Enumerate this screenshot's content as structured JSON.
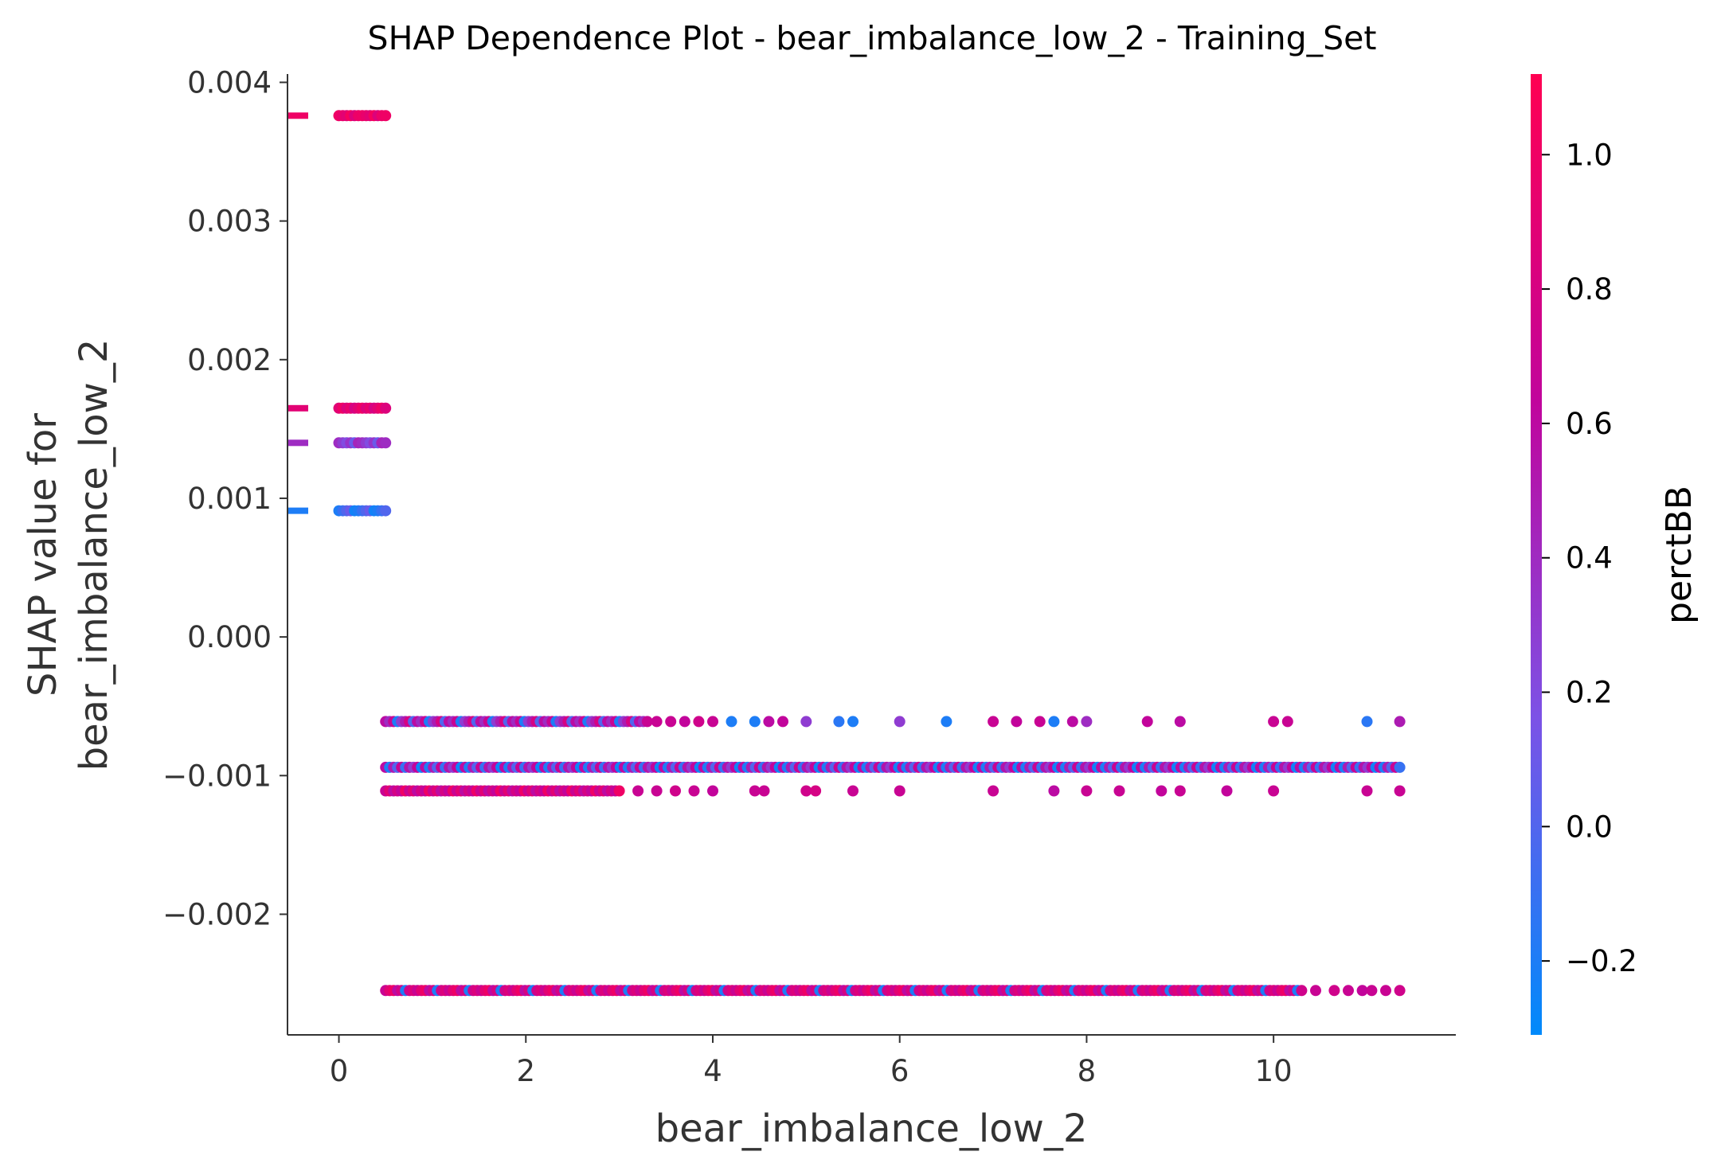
{
  "chart_data": {
    "type": "scatter",
    "title": "SHAP Dependence Plot - bear_imbalance_low_2 - Training_Set",
    "xlabel": "bear_imbalance_low_2",
    "ylabel_line1": "SHAP value for",
    "ylabel_line2": "bear_imbalance_low_2",
    "xlim": [
      -0.55,
      11.95
    ],
    "ylim": [
      -0.00287,
      0.00406
    ],
    "x_ticks": [
      {
        "value": 0,
        "label": "0"
      },
      {
        "value": 2,
        "label": "2"
      },
      {
        "value": 4,
        "label": "4"
      },
      {
        "value": 6,
        "label": "6"
      },
      {
        "value": 8,
        "label": "8"
      },
      {
        "value": 10,
        "label": "10"
      }
    ],
    "y_ticks": [
      {
        "value": 0.004,
        "label": "0.004"
      },
      {
        "value": 0.003,
        "label": "0.003"
      },
      {
        "value": 0.002,
        "label": "0.002"
      },
      {
        "value": 0.001,
        "label": "0.001"
      },
      {
        "value": 0.0,
        "label": "0.000"
      },
      {
        "value": -0.001,
        "label": "−0.001"
      },
      {
        "value": -0.002,
        "label": "−0.002"
      }
    ],
    "colorbar": {
      "label": "perctBB",
      "range": [
        -0.31,
        1.12
      ],
      "ticks": [
        {
          "value": 1.0,
          "label": "1.0"
        },
        {
          "value": 0.8,
          "label": "0.8"
        },
        {
          "value": 0.6,
          "label": "0.6"
        },
        {
          "value": 0.4,
          "label": "0.4"
        },
        {
          "value": 0.2,
          "label": "0.2"
        },
        {
          "value": 0.0,
          "label": "0.0"
        },
        {
          "value": -0.2,
          "label": "−0.2"
        }
      ],
      "colors": [
        "#008afb",
        "#7c52e6",
        "#c1049c",
        "#ff0052"
      ]
    },
    "bands": [
      {
        "y": 0.00376,
        "x": [
          0,
          0.5
        ],
        "dense": true,
        "color_values": [
          1.0,
          0.95,
          0.9,
          1.05,
          0.85,
          0.98
        ]
      },
      {
        "y": 0.00165,
        "x": [
          0,
          0.5
        ],
        "dense": true,
        "color_values": [
          0.9,
          1.0,
          0.85,
          0.95,
          0.8
        ]
      },
      {
        "y": 0.0014,
        "x": [
          0,
          0.5
        ],
        "dense": true,
        "color_values": [
          0.4,
          0.3,
          0.2,
          0.35,
          0.1,
          0.45
        ]
      },
      {
        "y": 0.00091,
        "x": [
          0,
          0.5
        ],
        "dense": true,
        "color_values": [
          -0.2,
          -0.1,
          0.0,
          0.1,
          -0.25
        ]
      },
      {
        "y": -0.00061,
        "x": [
          0.5,
          3.3
        ],
        "dense": true,
        "color_values": [
          0.6,
          0.4,
          0.7,
          -0.2,
          0.3,
          0.5,
          0.8,
          0.0
        ]
      },
      {
        "y": -0.00094,
        "x": [
          0.5,
          11.35
        ],
        "dense": true,
        "color_values": [
          0.6,
          -0.2,
          0.5,
          0.0,
          0.7,
          -0.1,
          0.55,
          0.3,
          0.65,
          -0.25
        ]
      },
      {
        "y": -0.00111,
        "x": [
          0.5,
          3.0
        ],
        "dense": true,
        "color_values": [
          0.7,
          0.9,
          0.6,
          0.8,
          0.65,
          1.0
        ]
      },
      {
        "y": -0.00255,
        "x": [
          0.5,
          10.3
        ],
        "dense": true,
        "color_values": [
          0.7,
          0.9,
          1.0,
          0.6,
          0.8,
          -0.2,
          0.75,
          0.85
        ]
      }
    ],
    "points": [
      {
        "x": 3.4,
        "y": -0.00061,
        "c": 0.7
      },
      {
        "x": 3.55,
        "y": -0.00061,
        "c": 0.7
      },
      {
        "x": 3.7,
        "y": -0.00061,
        "c": 0.65
      },
      {
        "x": 3.85,
        "y": -0.00061,
        "c": 0.75
      },
      {
        "x": 4.0,
        "y": -0.00061,
        "c": 0.7
      },
      {
        "x": 4.2,
        "y": -0.00061,
        "c": -0.2
      },
      {
        "x": 4.45,
        "y": -0.00061,
        "c": -0.2
      },
      {
        "x": 4.6,
        "y": -0.00061,
        "c": 0.6
      },
      {
        "x": 4.75,
        "y": -0.00061,
        "c": 0.65
      },
      {
        "x": 5.0,
        "y": -0.00061,
        "c": 0.3
      },
      {
        "x": 5.35,
        "y": -0.00061,
        "c": -0.15
      },
      {
        "x": 5.5,
        "y": -0.00061,
        "c": -0.2
      },
      {
        "x": 6.0,
        "y": -0.00061,
        "c": 0.3
      },
      {
        "x": 6.5,
        "y": -0.00061,
        "c": -0.2
      },
      {
        "x": 7.0,
        "y": -0.00061,
        "c": 0.7
      },
      {
        "x": 7.25,
        "y": -0.00061,
        "c": 0.65
      },
      {
        "x": 7.5,
        "y": -0.00061,
        "c": 0.7
      },
      {
        "x": 7.65,
        "y": -0.00061,
        "c": -0.2
      },
      {
        "x": 7.85,
        "y": -0.00061,
        "c": 0.6
      },
      {
        "x": 8.0,
        "y": -0.00061,
        "c": 0.4
      },
      {
        "x": 8.65,
        "y": -0.00061,
        "c": 0.65
      },
      {
        "x": 9.0,
        "y": -0.00061,
        "c": 0.6
      },
      {
        "x": 10.0,
        "y": -0.00061,
        "c": 0.7
      },
      {
        "x": 10.15,
        "y": -0.00061,
        "c": 0.7
      },
      {
        "x": 11.0,
        "y": -0.00061,
        "c": -0.15
      },
      {
        "x": 11.35,
        "y": -0.00061,
        "c": 0.5
      },
      {
        "x": 3.2,
        "y": -0.00111,
        "c": 0.7
      },
      {
        "x": 3.4,
        "y": -0.00111,
        "c": 0.7
      },
      {
        "x": 3.6,
        "y": -0.00111,
        "c": 0.75
      },
      {
        "x": 3.8,
        "y": -0.00111,
        "c": 0.7
      },
      {
        "x": 4.0,
        "y": -0.00111,
        "c": 0.65
      },
      {
        "x": 4.45,
        "y": -0.00111,
        "c": 0.7
      },
      {
        "x": 4.55,
        "y": -0.00111,
        "c": 0.7
      },
      {
        "x": 5.0,
        "y": -0.00111,
        "c": 0.75
      },
      {
        "x": 5.1,
        "y": -0.00111,
        "c": 0.8
      },
      {
        "x": 5.5,
        "y": -0.00111,
        "c": 0.7
      },
      {
        "x": 6.0,
        "y": -0.00111,
        "c": 0.7
      },
      {
        "x": 7.0,
        "y": -0.00111,
        "c": 0.7
      },
      {
        "x": 7.65,
        "y": -0.00111,
        "c": 0.6
      },
      {
        "x": 8.0,
        "y": -0.00111,
        "c": 0.7
      },
      {
        "x": 8.35,
        "y": -0.00111,
        "c": 0.7
      },
      {
        "x": 8.8,
        "y": -0.00111,
        "c": 0.65
      },
      {
        "x": 9.0,
        "y": -0.00111,
        "c": 0.7
      },
      {
        "x": 9.5,
        "y": -0.00111,
        "c": 0.65
      },
      {
        "x": 10.0,
        "y": -0.00111,
        "c": 0.7
      },
      {
        "x": 11.0,
        "y": -0.00111,
        "c": 0.7
      },
      {
        "x": 11.35,
        "y": -0.00111,
        "c": 0.7
      },
      {
        "x": 10.45,
        "y": -0.00255,
        "c": 0.7
      },
      {
        "x": 10.65,
        "y": -0.00255,
        "c": 0.75
      },
      {
        "x": 10.8,
        "y": -0.00255,
        "c": 0.7
      },
      {
        "x": 10.95,
        "y": -0.00255,
        "c": 0.65
      },
      {
        "x": 11.05,
        "y": -0.00255,
        "c": 0.7
      },
      {
        "x": 11.2,
        "y": -0.00255,
        "c": 0.7
      },
      {
        "x": 11.35,
        "y": -0.00255,
        "c": 0.75
      }
    ]
  }
}
